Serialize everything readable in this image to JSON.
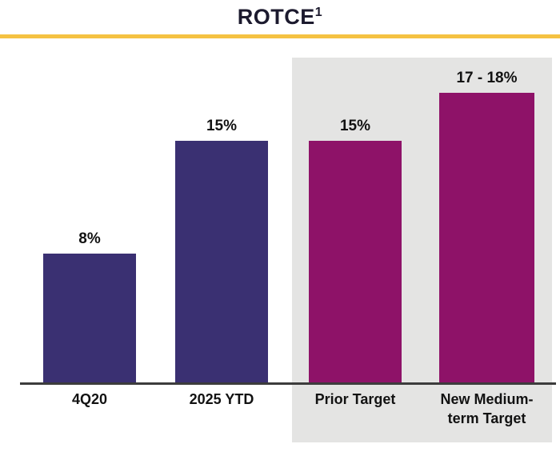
{
  "title": {
    "text": "ROTCE",
    "superscript": "1"
  },
  "colors": {
    "navy_bar": "#3A3072",
    "magenta_bar": "#8E1268",
    "gold_rule": "#F5C242",
    "highlight_panel": "#E4E4E3",
    "axis_line": "#3C3C3C",
    "label_text": "#121212",
    "title_text": "#1C1A2E"
  },
  "chart_data": {
    "type": "bar",
    "title": "ROTCE¹",
    "categories": [
      "4Q20",
      "2025 YTD",
      "Prior Target",
      "New Medium-term Target"
    ],
    "values": [
      8,
      15,
      15,
      18
    ],
    "value_labels": [
      "8%",
      "15%",
      "15%",
      "17 - 18%"
    ],
    "ylim": [
      0,
      18
    ],
    "grid": false,
    "legend": false,
    "highlighted_categories": [
      "Prior Target",
      "New Medium-term Target"
    ],
    "bars": [
      {
        "category": "4Q20",
        "category_lines": [
          "4Q20"
        ],
        "value": 8,
        "label": "8%",
        "color": "#3A3072",
        "highlighted": false
      },
      {
        "category": "2025 YTD",
        "category_lines": [
          "2025 YTD"
        ],
        "value": 15,
        "label": "15%",
        "color": "#3A3072",
        "highlighted": false
      },
      {
        "category": "Prior Target",
        "category_lines": [
          "Prior Target"
        ],
        "value": 15,
        "label": "15%",
        "color": "#8E1268",
        "highlighted": true
      },
      {
        "category": "New Medium-term Target",
        "category_lines": [
          "New Medium-",
          "term Target"
        ],
        "value_min": 17,
        "value_max": 18,
        "value": 18,
        "label": "17 - 18%",
        "color": "#8E1268",
        "highlighted": true
      }
    ]
  }
}
